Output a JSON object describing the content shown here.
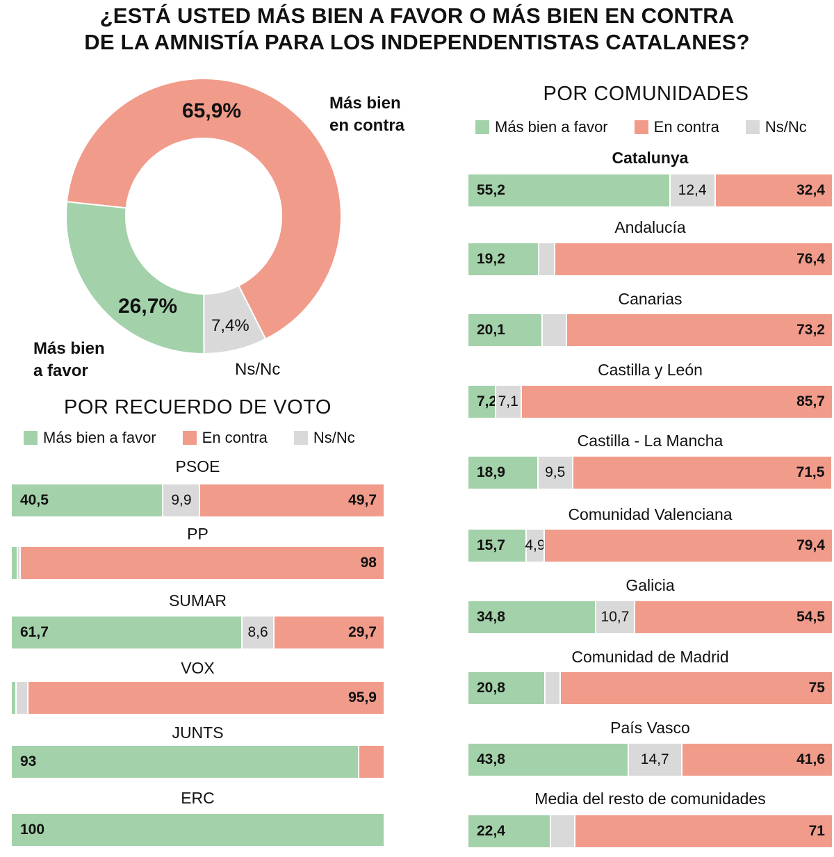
{
  "title_line1": "¿ESTÁ USTED MÁS BIEN A FAVOR O MÁS BIEN EN CONTRA",
  "title_line2": "DE LA AMNISTÍA PARA LOS INDEPENDENTISTAS CATALANES?",
  "colors": {
    "favor": "#a3d1a9",
    "contra": "#f19b8b",
    "nsnc": "#d9d9d9"
  },
  "chart_data": [
    {
      "type": "pie",
      "subtype": "donut",
      "slices": [
        {
          "name": "Más bien en contra",
          "value": 65.9,
          "label": "65,9%",
          "name_line1": "Más bien",
          "name_line2": "en contra"
        },
        {
          "name": "Ns/Nc",
          "value": 7.4,
          "label": "7,4%",
          "name_line1": "Ns/Nc"
        },
        {
          "name": "Más bien a favor",
          "value": 26.7,
          "label": "26,7%",
          "name_line1": "Más bien",
          "name_line2": "a favor"
        }
      ]
    },
    {
      "type": "bar",
      "orientation": "horizontal",
      "stacked": true,
      "title": "POR RECUERDO DE VOTO",
      "legend": [
        "Más bien a favor",
        "En contra",
        "Ns/Nc"
      ],
      "categories": [
        "PSOE",
        "PP",
        "SUMAR",
        "VOX",
        "JUNTS",
        "ERC"
      ],
      "series": [
        {
          "name": "Más bien a favor",
          "values": [
            40.5,
            1.4,
            61.7,
            1.0,
            93,
            100
          ],
          "labels": [
            "40,5",
            "",
            "61,7",
            "",
            "93",
            "100"
          ]
        },
        {
          "name": "Ns/Nc",
          "values": [
            9.9,
            0.6,
            8.6,
            3.1,
            0,
            0
          ],
          "labels": [
            "9,9",
            "",
            "8,6",
            "",
            "",
            ""
          ]
        },
        {
          "name": "En contra",
          "values": [
            49.7,
            98,
            29.7,
            95.9,
            7,
            0
          ],
          "labels": [
            "49,7",
            "98",
            "29,7",
            "95,9",
            "",
            ""
          ]
        }
      ]
    },
    {
      "type": "bar",
      "orientation": "horizontal",
      "stacked": true,
      "title": "POR COMUNIDADES",
      "legend": [
        "Más bien a favor",
        "En contra",
        "Ns/Nc"
      ],
      "categories": [
        "Catalunya",
        "Andalucía",
        "Canarias",
        "Castilla y León",
        "Castilla - La Mancha",
        "Comunidad Valenciana",
        "Galicia",
        "Comunidad de Madrid",
        "País Vasco",
        "Media del resto de comunidades"
      ],
      "series": [
        {
          "name": "Más bien a favor",
          "values": [
            55.2,
            19.2,
            20.1,
            7.2,
            18.9,
            15.7,
            34.8,
            20.8,
            43.8,
            22.4
          ],
          "labels": [
            "55,2",
            "19,2",
            "20,1",
            "7,2",
            "18,9",
            "15,7",
            "34,8",
            "20,8",
            "43,8",
            "22,4"
          ]
        },
        {
          "name": "Ns/Nc",
          "values": [
            12.4,
            4.4,
            6.7,
            7.1,
            9.5,
            4.9,
            10.7,
            4.2,
            14.7,
            6.6
          ],
          "labels": [
            "12,4",
            "",
            "",
            "7,1",
            "9,5",
            "4,9",
            "10,7",
            "",
            "14,7",
            ""
          ]
        },
        {
          "name": "En contra",
          "values": [
            32.4,
            76.4,
            73.2,
            85.7,
            71.5,
            79.4,
            54.5,
            75,
            41.6,
            71
          ],
          "labels": [
            "32,4",
            "76,4",
            "73,2",
            "85,7",
            "71,5",
            "79,4",
            "54,5",
            "75",
            "41,6",
            "71"
          ]
        }
      ]
    }
  ]
}
